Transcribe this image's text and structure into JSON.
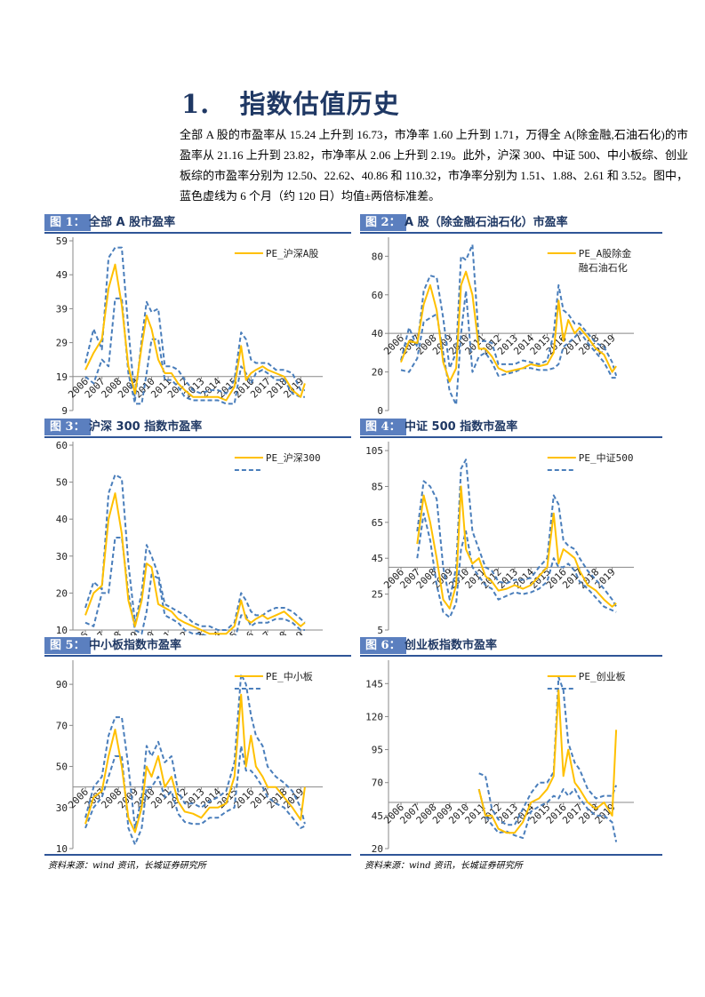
{
  "section": {
    "number": "1.",
    "title": "指数估值历史"
  },
  "paragraph": "全部 A 股的市盈率从 15.24 上升到 16.73，市净率 1.60 上升到 1.71，万得全 A(除金融,石油石化)的市盈率从 21.16 上升到 23.82，市净率从 2.06 上升到 2.19。此外，沪深 300、中证 500、中小板综、创业板综的市盈率分别为 12.50、22.62、40.86 和 110.32，市净率分别为 1.51、1.88、2.61 和 3.52。图中，蓝色虚线为 6 个月（约 120 日）均值±两倍标准差。",
  "source": "资料来源：wind 资讯，长城证券研究所",
  "colors": {
    "pe_line": "#ffc000",
    "band_line": "#4a7ebb",
    "header_navy": "#1f3864"
  },
  "chart_data": [
    {
      "label": "图 1：",
      "title": "全部 A 股市盈率",
      "type": "line",
      "legend": "PE_沪深A股",
      "band_legend_shown": false,
      "yticks": [
        9,
        19,
        29,
        39,
        49,
        59
      ],
      "ylim": [
        9,
        59
      ],
      "x_axis_at": 19,
      "xticks": [
        "2006",
        "2007",
        "2008",
        "2009",
        "2010",
        "2011",
        "2012",
        "2013",
        "2014",
        "2015",
        "2016",
        "2017",
        "2018",
        "2019"
      ],
      "x": [
        2006,
        2006.5,
        2007,
        2007.4,
        2007.8,
        2008.2,
        2008.6,
        2009,
        2009.4,
        2009.7,
        2010,
        2010.4,
        2010.8,
        2011.2,
        2011.6,
        2012,
        2012.5,
        2013,
        2013.5,
        2014,
        2014.5,
        2015,
        2015.4,
        2015.7,
        2016,
        2016.3,
        2016.7,
        2017,
        2017.5,
        2018,
        2018.5,
        2019,
        2019.25
      ],
      "series": [
        {
          "name": "PE_沪深A股",
          "values": [
            21,
            26,
            30,
            45,
            52,
            40,
            22,
            14,
            28,
            37,
            33,
            24,
            20,
            20,
            17,
            15,
            13,
            13,
            13,
            13,
            12,
            16,
            28,
            18,
            20,
            21,
            22,
            21,
            20,
            19,
            15,
            13,
            17
          ]
        },
        {
          "role": "upper",
          "values": [
            23,
            33,
            27,
            54,
            57,
            57,
            33,
            12,
            30,
            41,
            38,
            39,
            22,
            22,
            21,
            18,
            15,
            14,
            15,
            15,
            14,
            18,
            32,
            30,
            24,
            23,
            23,
            23,
            21,
            21,
            20,
            15,
            15
          ]
        },
        {
          "role": "lower",
          "values": [
            19,
            17,
            24,
            22,
            42,
            42,
            20,
            11,
            11,
            20,
            30,
            30,
            18,
            18,
            16,
            13,
            12,
            12,
            12,
            12,
            11,
            11,
            22,
            20,
            17,
            20,
            21,
            20,
            18,
            18,
            14,
            13,
            13
          ]
        }
      ]
    },
    {
      "label": "图 2：",
      "title": "A 股（除金融石油石化）市盈率",
      "type": "line",
      "legend": "PE_A股除金\n融石油石化",
      "band_legend_shown": false,
      "yticks": [
        0,
        20,
        40,
        60,
        80
      ],
      "ylim": [
        0,
        88
      ],
      "x_axis_at": 40,
      "xticks": [
        "2006",
        "2007",
        "2008",
        "2009",
        "2010",
        "2011",
        "2012",
        "2013",
        "2014",
        "2015",
        "2016",
        "2017",
        "2018",
        "2019"
      ],
      "x": [
        2006,
        2006.5,
        2007,
        2007.4,
        2007.8,
        2008.2,
        2008.6,
        2009,
        2009.4,
        2009.7,
        2010,
        2010.4,
        2010.8,
        2011.2,
        2011.6,
        2012,
        2012.5,
        2013,
        2013.5,
        2014,
        2014.5,
        2015,
        2015.4,
        2015.7,
        2016,
        2016.3,
        2016.7,
        2017,
        2017.5,
        2018,
        2018.5,
        2019,
        2019.25
      ],
      "series": [
        {
          "name": "PE_A股除金融石油石化",
          "values": [
            25,
            36,
            35,
            55,
            65,
            52,
            25,
            15,
            22,
            65,
            72,
            60,
            32,
            32,
            28,
            22,
            20,
            21,
            22,
            24,
            23,
            24,
            30,
            57,
            36,
            47,
            40,
            43,
            38,
            32,
            29,
            20,
            23
          ]
        },
        {
          "role": "upper",
          "values": [
            26,
            43,
            33,
            62,
            70,
            69,
            48,
            22,
            30,
            80,
            78,
            86,
            36,
            36,
            35,
            24,
            24,
            24,
            26,
            25,
            24,
            26,
            40,
            65,
            52,
            50,
            45,
            45,
            40,
            35,
            33,
            25,
            18
          ]
        },
        {
          "role": "lower",
          "values": [
            21,
            20,
            27,
            46,
            48,
            50,
            30,
            10,
            3,
            40,
            62,
            20,
            28,
            30,
            25,
            18,
            19,
            20,
            22,
            22,
            21,
            21,
            22,
            24,
            33,
            35,
            38,
            41,
            35,
            30,
            25,
            17,
            17
          ]
        }
      ]
    },
    {
      "label": "图 3：",
      "title": "沪深 300 指数市盈率",
      "type": "line",
      "legend": "PE_沪深300",
      "band_legend_shown": true,
      "yticks": [
        10,
        20,
        30,
        40,
        50,
        60
      ],
      "ylim": [
        10,
        60
      ],
      "x_axis_at": 10,
      "xticks": [
        "2006",
        "2007",
        "2008",
        "2009",
        "2010",
        "2011",
        "2012",
        "2013",
        "2014",
        "2015",
        "2016",
        "2017",
        "2018",
        "2019"
      ],
      "x": [
        2006,
        2006.5,
        2007,
        2007.4,
        2007.8,
        2008.2,
        2008.6,
        2009,
        2009.4,
        2009.7,
        2010,
        2010.4,
        2010.8,
        2011.2,
        2011.6,
        2012,
        2012.5,
        2013,
        2013.5,
        2014,
        2014.5,
        2015,
        2015.4,
        2015.7,
        2016,
        2016.3,
        2016.7,
        2017,
        2017.5,
        2018,
        2018.5,
        2019,
        2019.25
      ],
      "series": [
        {
          "name": "PE_沪深300",
          "values": [
            14,
            20,
            22,
            40,
            47,
            36,
            18,
            11,
            18,
            28,
            27,
            17,
            16,
            15,
            13,
            12,
            11,
            10,
            9,
            9,
            9,
            11,
            18,
            13,
            12,
            13,
            14,
            13,
            14,
            15,
            13,
            11,
            12
          ]
        },
        {
          "role": "upper",
          "values": [
            16,
            23,
            21,
            47,
            52,
            51,
            28,
            12,
            20,
            33,
            30,
            25,
            17,
            16,
            15,
            14,
            12,
            11,
            11,
            10,
            10,
            12,
            20,
            18,
            15,
            14,
            14,
            15,
            16,
            16,
            15,
            13,
            12
          ]
        },
        {
          "role": "lower",
          "values": [
            12,
            11,
            20,
            20,
            35,
            35,
            20,
            10,
            9,
            15,
            25,
            24,
            14,
            13,
            12,
            10,
            9,
            9,
            8,
            8,
            7,
            7,
            14,
            14,
            11,
            12,
            12,
            12,
            13,
            13,
            12,
            10,
            10
          ]
        }
      ]
    },
    {
      "label": "图 4：",
      "title": "中证 500 指数市盈率",
      "type": "line",
      "legend": "PE_中证500",
      "band_legend_shown": true,
      "yticks": [
        5,
        25,
        45,
        65,
        85,
        105
      ],
      "ylim": [
        5,
        108
      ],
      "x_axis_at": 40,
      "xticks": [
        "2006",
        "2007",
        "2008",
        "2009",
        "2010",
        "2011",
        "2012",
        "2013",
        "2014",
        "2015",
        "2016",
        "2017",
        "2018",
        "2019"
      ],
      "x": [
        2006,
        2006.5,
        2007,
        2007.4,
        2007.8,
        2008.2,
        2008.6,
        2009,
        2009.4,
        2009.7,
        2010,
        2010.4,
        2010.8,
        2011.2,
        2011.6,
        2012,
        2012.5,
        2013,
        2013.5,
        2014,
        2014.5,
        2015,
        2015.4,
        2015.7,
        2016,
        2016.3,
        2016.7,
        2017,
        2017.5,
        2018,
        2018.5,
        2019,
        2019.25
      ],
      "series": [
        {
          "name": "PE_中证500",
          "values": [
            null,
            null,
            53,
            80,
            65,
            45,
            22,
            17,
            30,
            85,
            50,
            42,
            45,
            35,
            32,
            27,
            28,
            30,
            28,
            30,
            35,
            40,
            70,
            42,
            50,
            48,
            45,
            38,
            30,
            27,
            22,
            18,
            20
          ]
        },
        {
          "role": "upper",
          "values": [
            null,
            null,
            60,
            88,
            85,
            78,
            40,
            22,
            40,
            95,
            100,
            60,
            50,
            40,
            38,
            32,
            31,
            33,
            33,
            34,
            40,
            45,
            80,
            75,
            55,
            52,
            50,
            45,
            38,
            33,
            28,
            22,
            18
          ]
        },
        {
          "role": "lower",
          "values": [
            null,
            null,
            45,
            70,
            55,
            30,
            15,
            12,
            20,
            50,
            60,
            40,
            35,
            30,
            28,
            22,
            24,
            26,
            25,
            26,
            28,
            32,
            45,
            40,
            40,
            42,
            38,
            32,
            28,
            23,
            18,
            16,
            15
          ]
        }
      ]
    },
    {
      "label": "图 5：",
      "title": "中小板指数市盈率",
      "type": "line",
      "legend": "PE_中小板",
      "band_legend_shown": true,
      "yticks": [
        10,
        30,
        50,
        70,
        90
      ],
      "ylim": [
        10,
        100
      ],
      "x_axis_at": 40,
      "xticks": [
        "2006",
        "2007",
        "2008",
        "2009",
        "2010",
        "2011",
        "2012",
        "2013",
        "2014",
        "2015",
        "2016",
        "2017",
        "2018",
        "2019"
      ],
      "x": [
        2006,
        2006.5,
        2007,
        2007.4,
        2007.8,
        2008.2,
        2008.6,
        2009,
        2009.4,
        2009.7,
        2010,
        2010.4,
        2010.8,
        2011.2,
        2011.6,
        2012,
        2012.5,
        2013,
        2013.5,
        2014,
        2014.5,
        2015,
        2015.4,
        2015.7,
        2016,
        2016.3,
        2016.7,
        2017,
        2017.5,
        2018,
        2018.5,
        2019,
        2019.25
      ],
      "series": [
        {
          "name": "PE_中小板",
          "values": [
            22,
            35,
            38,
            55,
            68,
            50,
            25,
            18,
            30,
            50,
            45,
            55,
            40,
            45,
            33,
            28,
            27,
            25,
            30,
            30,
            32,
            45,
            85,
            50,
            65,
            50,
            45,
            40,
            40,
            35,
            30,
            24,
            40
          ]
        },
        {
          "role": "upper",
          "values": [
            25,
            40,
            45,
            65,
            74,
            74,
            50,
            20,
            35,
            60,
            55,
            62,
            52,
            55,
            38,
            32,
            32,
            30,
            33,
            35,
            38,
            52,
            95,
            90,
            75,
            65,
            60,
            50,
            45,
            42,
            38,
            30,
            22
          ]
        },
        {
          "role": "lower",
          "values": [
            20,
            30,
            35,
            45,
            55,
            55,
            20,
            12,
            20,
            40,
            40,
            45,
            35,
            38,
            27,
            23,
            22,
            22,
            25,
            25,
            28,
            30,
            60,
            48,
            48,
            45,
            40,
            35,
            32,
            30,
            25,
            20,
            21
          ]
        }
      ]
    },
    {
      "label": "图 6：",
      "title": "创业板指数市盈率",
      "type": "line",
      "legend": "PE_创业板",
      "band_legend_shown": true,
      "yticks": [
        20,
        45,
        70,
        95,
        120,
        145
      ],
      "ylim": [
        20,
        160
      ],
      "x_axis_at": 55,
      "xticks": [
        "2006",
        "2007",
        "2008",
        "2009",
        "2010",
        "2011",
        "2012",
        "2013",
        "2014",
        "2015",
        "2016",
        "2017",
        "2018",
        "2019"
      ],
      "x": [
        2006,
        2006.5,
        2007,
        2007.4,
        2007.8,
        2008.2,
        2008.6,
        2009,
        2009.4,
        2009.7,
        2010,
        2010.4,
        2010.8,
        2011.2,
        2011.6,
        2012,
        2012.5,
        2013,
        2013.5,
        2014,
        2014.5,
        2015,
        2015.4,
        2015.7,
        2016,
        2016.3,
        2016.7,
        2017,
        2017.5,
        2018,
        2018.5,
        2019,
        2019.25
      ],
      "series": [
        {
          "name": "PE_创业板",
          "values": [
            null,
            null,
            null,
            null,
            null,
            null,
            null,
            null,
            null,
            null,
            null,
            null,
            65,
            45,
            45,
            35,
            32,
            32,
            40,
            55,
            58,
            65,
            75,
            140,
            75,
            95,
            70,
            65,
            55,
            50,
            55,
            45,
            110
          ]
        },
        {
          "role": "upper",
          "values": [
            null,
            null,
            null,
            null,
            null,
            null,
            null,
            null,
            null,
            null,
            null,
            null,
            77,
            75,
            50,
            42,
            38,
            38,
            50,
            62,
            70,
            70,
            78,
            150,
            140,
            100,
            85,
            80,
            65,
            58,
            60,
            60,
            68
          ]
        },
        {
          "role": "lower",
          "values": [
            null,
            null,
            null,
            null,
            null,
            null,
            null,
            null,
            null,
            null,
            null,
            null,
            65,
            45,
            38,
            32,
            33,
            30,
            28,
            48,
            52,
            55,
            60,
            58,
            65,
            60,
            65,
            58,
            50,
            45,
            45,
            40,
            25
          ]
        }
      ]
    }
  ]
}
